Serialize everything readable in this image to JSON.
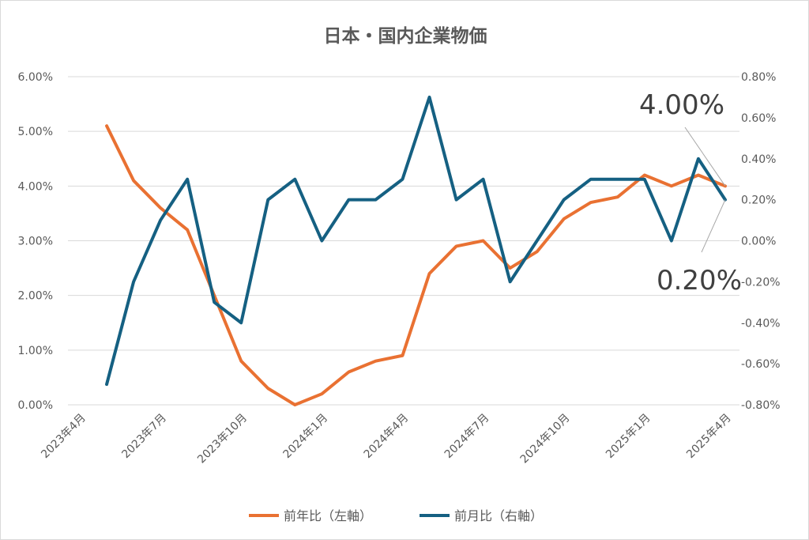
{
  "chart_data": {
    "type": "line",
    "title": "日本・国内企業物価",
    "x_axis_ticks": [
      "2023年4月",
      "2023年7月",
      "2023年10月",
      "2024年1月",
      "2024年4月",
      "2024年7月",
      "2024年10月",
      "2025年1月",
      "2025年4月"
    ],
    "x_start_month_index": 1,
    "categories": [
      "2023/5",
      "2023/6",
      "2023/7",
      "2023/8",
      "2023/9",
      "2023/10",
      "2023/11",
      "2023/12",
      "2024/1",
      "2024/2",
      "2024/3",
      "2024/4",
      "2024/5",
      "2024/6",
      "2024/7",
      "2024/8",
      "2024/9",
      "2024/10",
      "2024/11",
      "2024/12",
      "2025/1",
      "2025/2",
      "2025/3",
      "2025/4"
    ],
    "left_axis": {
      "ylim": [
        0,
        6
      ],
      "ticks": [
        "0.00%",
        "1.00%",
        "2.00%",
        "3.00%",
        "4.00%",
        "5.00%",
        "6.00%"
      ]
    },
    "right_axis": {
      "ylim": [
        -0.8,
        0.8
      ],
      "ticks": [
        "-0.80%",
        "-0.60%",
        "-0.40%",
        "-0.20%",
        "0.00%",
        "0.20%",
        "0.40%",
        "0.60%",
        "0.80%"
      ]
    },
    "series": [
      {
        "name": "前年比（左軸）",
        "axis": "left",
        "color": "#E97132",
        "values": [
          5.1,
          4.1,
          3.6,
          3.2,
          2.0,
          0.8,
          0.3,
          0.0,
          0.2,
          0.6,
          0.8,
          0.9,
          2.4,
          2.9,
          3.0,
          2.5,
          2.8,
          3.4,
          3.7,
          3.8,
          4.2,
          4.0,
          4.2,
          4.0
        ]
      },
      {
        "name": "前月比（右軸）",
        "axis": "right",
        "color": "#156082",
        "values": [
          -0.7,
          -0.2,
          0.1,
          0.3,
          -0.3,
          -0.4,
          0.2,
          0.3,
          0.0,
          0.2,
          0.2,
          0.3,
          0.7,
          0.2,
          0.3,
          -0.2,
          0.0,
          0.2,
          0.3,
          0.3,
          0.3,
          0.0,
          0.4,
          0.2
        ]
      }
    ],
    "annotations": [
      {
        "text": "4.00%",
        "series": 0,
        "point": "2025/4"
      },
      {
        "text": "0.20%",
        "series": 1,
        "point": "2025/4"
      }
    ],
    "grid": true,
    "legend_position": "bottom"
  }
}
